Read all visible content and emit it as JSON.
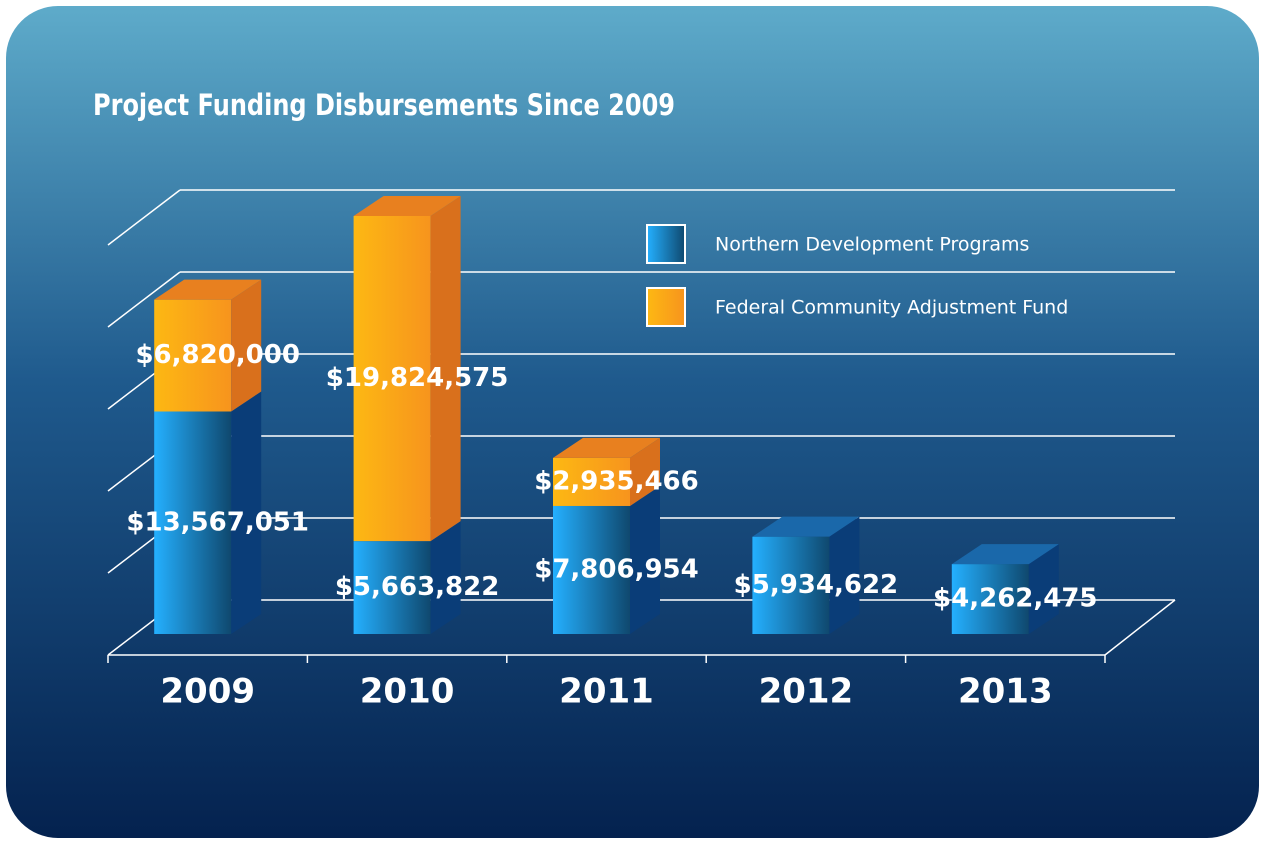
{
  "chart_data": {
    "type": "bar3d_stacked",
    "title": "Project Funding Disbursements Since 2009",
    "categories": [
      "2009",
      "2010",
      "2011",
      "2012",
      "2013"
    ],
    "series": [
      {
        "name": "Northern Development Programs",
        "color": "#1b82c8",
        "values": [
          13567051,
          5663822,
          7806954,
          5934622,
          4262475
        ],
        "value_labels": [
          "$13,567,051",
          "$5,663,822",
          "$7,806,954",
          "$5,934,622",
          "$4,262,475"
        ]
      },
      {
        "name": "Federal Community Adjustment Fund",
        "color": "#fdb813",
        "values": [
          6820000,
          19824575,
          2935466,
          null,
          null
        ],
        "value_labels": [
          "$6,820,000",
          "$19,824,575",
          "$2,935,466",
          null,
          null
        ]
      }
    ],
    "ylim": [
      0,
      25000000
    ],
    "yticks": [
      0,
      5000000,
      10000000,
      15000000,
      20000000,
      25000000
    ],
    "grid": true
  }
}
